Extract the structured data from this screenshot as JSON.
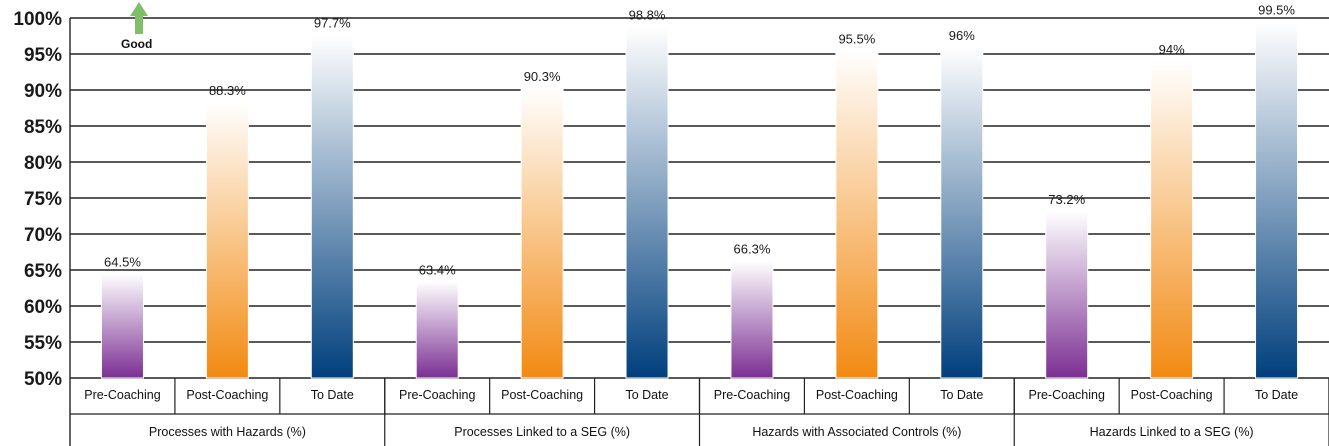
{
  "chart_data": {
    "type": "bar",
    "ylim": [
      50,
      100
    ],
    "y_ticks": [
      "50%",
      "55%",
      "60%",
      "65%",
      "70%",
      "75%",
      "80%",
      "85%",
      "90%",
      "95%",
      "100%"
    ],
    "grid": true,
    "annotation": "Good",
    "groups": [
      {
        "label": "Processes with Hazards (%)",
        "bars": [
          {
            "category": "Pre-Coaching",
            "value": 64.5,
            "label": "64.5%"
          },
          {
            "category": "Post-Coaching",
            "value": 88.3,
            "label": "88.3%"
          },
          {
            "category": "To Date",
            "value": 97.7,
            "label": "97.7%"
          }
        ]
      },
      {
        "label": "Processes Linked to a SEG (%)",
        "bars": [
          {
            "category": "Pre-Coaching",
            "value": 63.4,
            "label": "63.4%"
          },
          {
            "category": "Post-Coaching",
            "value": 90.3,
            "label": "90.3%"
          },
          {
            "category": "To Date",
            "value": 98.8,
            "label": "98.8%"
          }
        ]
      },
      {
        "label": "Hazards with Associated Controls (%)",
        "bars": [
          {
            "category": "Pre-Coaching",
            "value": 66.3,
            "label": "66.3%"
          },
          {
            "category": "Post-Coaching",
            "value": 95.5,
            "label": "95.5%"
          },
          {
            "category": "To Date",
            "value": 96,
            "label": "96%"
          }
        ]
      },
      {
        "label": "Hazards Linked to a SEG (%)",
        "bars": [
          {
            "category": "Pre-Coaching",
            "value": 73.2,
            "label": "73.2%"
          },
          {
            "category": "Post-Coaching",
            "value": 94,
            "label": "94%"
          },
          {
            "category": "To Date",
            "value": 99.5,
            "label": "99.5%"
          }
        ]
      }
    ],
    "colors": {
      "Pre-Coaching": {
        "top": "#ffffff",
        "bottom": "#7b2f93"
      },
      "Post-Coaching": {
        "top": "#ffffff",
        "bottom": "#f28a12"
      },
      "To Date": {
        "top": "#ffffff",
        "bottom": "#003f7d"
      },
      "arrow": "#7fbf6a"
    }
  }
}
